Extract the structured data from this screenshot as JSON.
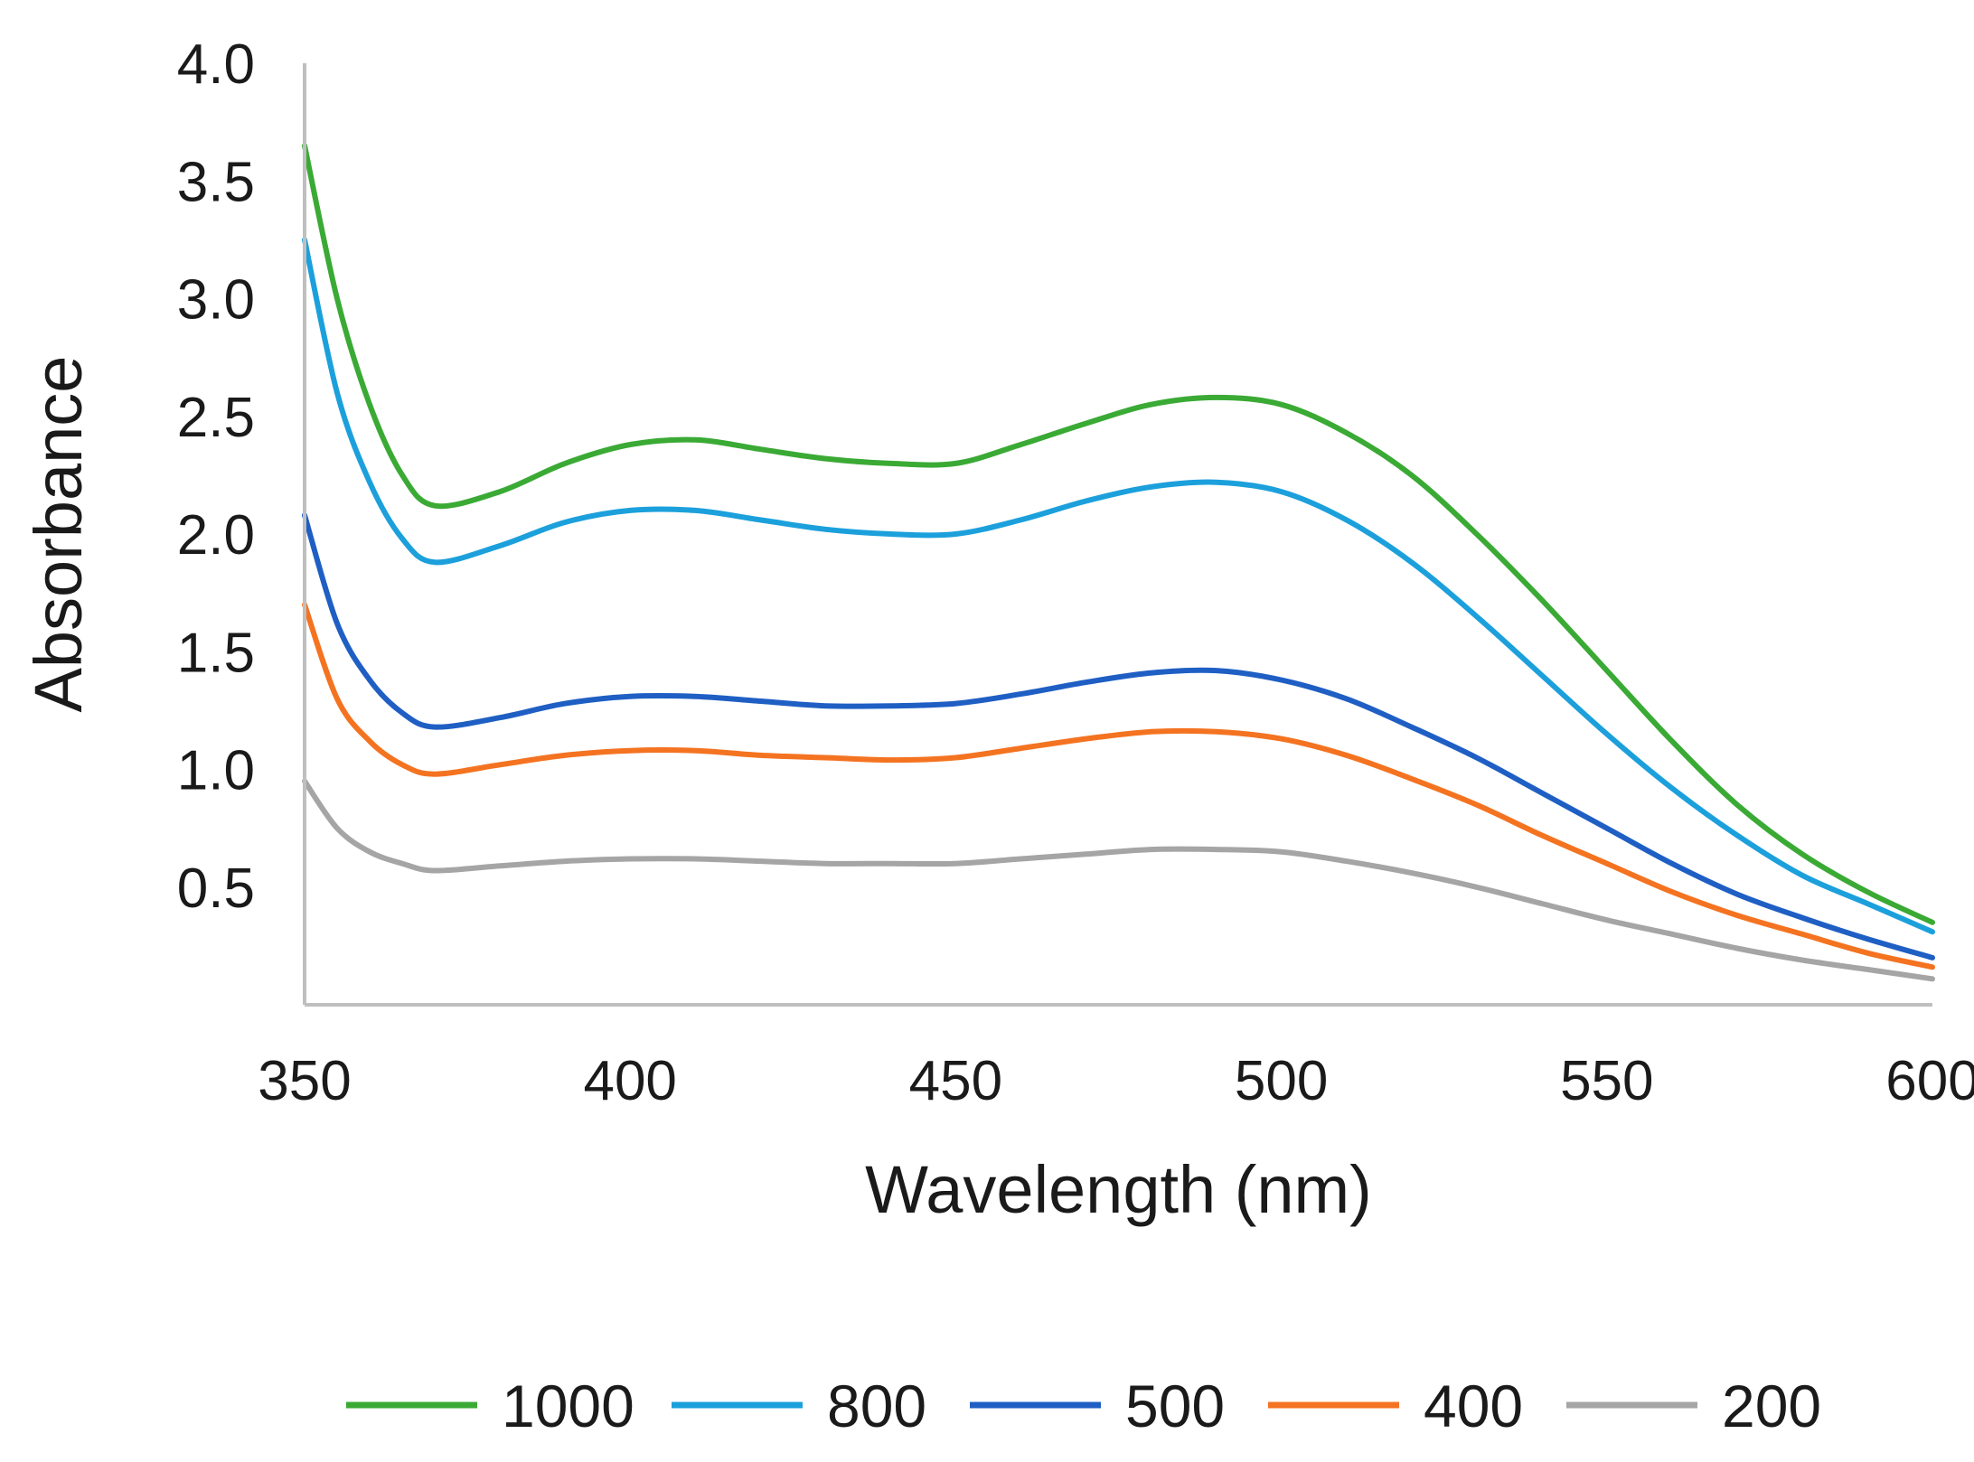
{
  "chart_data": {
    "type": "line",
    "title": "",
    "xlabel": "Wavelength (nm)",
    "ylabel": "Absorbance",
    "xlim": [
      350,
      600
    ],
    "ylim": [
      0.0,
      4.0
    ],
    "x_ticks": [
      "350",
      "400",
      "450",
      "500",
      "550",
      "600"
    ],
    "y_ticks": [
      "0.5",
      "1.0",
      "1.5",
      "2.0",
      "2.5",
      "3.0",
      "3.5",
      "4.0"
    ],
    "grid": false,
    "legend_position": "bottom",
    "x": [
      350,
      355,
      360,
      365,
      370,
      380,
      390,
      400,
      410,
      420,
      430,
      440,
      450,
      460,
      470,
      480,
      490,
      500,
      510,
      520,
      530,
      540,
      550,
      560,
      570,
      580,
      590,
      600
    ],
    "series": [
      {
        "name": "1000",
        "color": "#3aaa35",
        "values": [
          3.65,
          3.0,
          2.55,
          2.25,
          2.12,
          2.18,
          2.3,
          2.38,
          2.4,
          2.36,
          2.32,
          2.3,
          2.3,
          2.38,
          2.47,
          2.55,
          2.58,
          2.55,
          2.43,
          2.25,
          2.0,
          1.72,
          1.42,
          1.12,
          0.85,
          0.64,
          0.48,
          0.35
        ]
      },
      {
        "name": "800",
        "color": "#1ca0dc",
        "values": [
          3.25,
          2.6,
          2.22,
          1.98,
          1.88,
          1.95,
          2.05,
          2.1,
          2.1,
          2.06,
          2.02,
          2.0,
          2.0,
          2.06,
          2.14,
          2.2,
          2.22,
          2.18,
          2.06,
          1.88,
          1.65,
          1.4,
          1.15,
          0.92,
          0.72,
          0.55,
          0.43,
          0.31
        ]
      },
      {
        "name": "500",
        "color": "#1f5fc4",
        "values": [
          2.08,
          1.62,
          1.38,
          1.24,
          1.18,
          1.22,
          1.28,
          1.31,
          1.31,
          1.29,
          1.27,
          1.27,
          1.28,
          1.32,
          1.37,
          1.41,
          1.42,
          1.38,
          1.3,
          1.18,
          1.05,
          0.9,
          0.75,
          0.6,
          0.47,
          0.37,
          0.28,
          0.2
        ]
      },
      {
        "name": "400",
        "color": "#f47321",
        "values": [
          1.7,
          1.3,
          1.12,
          1.02,
          0.98,
          1.02,
          1.06,
          1.08,
          1.08,
          1.06,
          1.05,
          1.04,
          1.05,
          1.09,
          1.13,
          1.16,
          1.16,
          1.13,
          1.06,
          0.96,
          0.85,
          0.72,
          0.6,
          0.48,
          0.38,
          0.3,
          0.22,
          0.16
        ]
      },
      {
        "name": "200",
        "color": "#a5a5a5",
        "values": [
          0.95,
          0.75,
          0.65,
          0.6,
          0.57,
          0.59,
          0.61,
          0.62,
          0.62,
          0.61,
          0.6,
          0.6,
          0.6,
          0.62,
          0.64,
          0.66,
          0.66,
          0.65,
          0.61,
          0.56,
          0.5,
          0.43,
          0.36,
          0.3,
          0.24,
          0.19,
          0.15,
          0.11
        ]
      }
    ]
  }
}
